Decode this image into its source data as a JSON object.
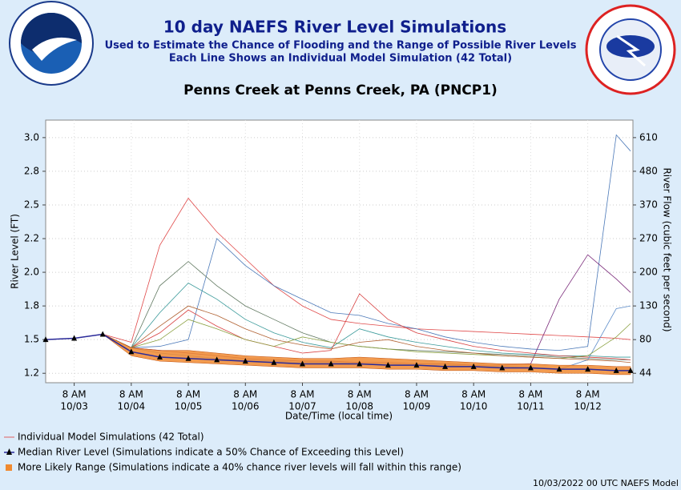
{
  "header": {
    "title": "10 day NAEFS River Level Simulations",
    "subtitle1": "Used to Estimate the Chance of Flooding and the Range of Possible River Levels",
    "subtitle2": "Each Line Shows an Individual Model Simulation (42 Total)"
  },
  "chart_data": {
    "type": "line",
    "title": "Penns Creek at Penns Creek, PA (PNCP1)",
    "x_label": "Date/Time (local time)",
    "y_label": "River Level (FT)",
    "y2_label": "River Flow (cubic feet per second)",
    "x": [
      "10/02 20:00",
      "10/03 08:00",
      "10/03 20:00",
      "10/04 08:00",
      "10/04 20:00",
      "10/05 08:00",
      "10/05 20:00",
      "10/06 08:00",
      "10/06 20:00",
      "10/07 08:00",
      "10/07 20:00",
      "10/08 08:00",
      "10/08 20:00",
      "10/09 08:00",
      "10/09 20:00",
      "10/10 08:00",
      "10/10 20:00",
      "10/11 08:00",
      "10/11 20:00",
      "10/12 08:00",
      "10/12 20:00",
      "10/13 02:00"
    ],
    "xlim": [
      "10/02 20:00",
      "10/13 03:00"
    ],
    "xticks": [
      {
        "value": "10/03 08:00",
        "label": [
          "8 AM",
          "10/03"
        ]
      },
      {
        "value": "10/04 08:00",
        "label": [
          "8 AM",
          "10/04"
        ]
      },
      {
        "value": "10/05 08:00",
        "label": [
          "8 AM",
          "10/05"
        ]
      },
      {
        "value": "10/06 08:00",
        "label": [
          "8 AM",
          "10/06"
        ]
      },
      {
        "value": "10/07 08:00",
        "label": [
          "8 AM",
          "10/07"
        ]
      },
      {
        "value": "10/08 08:00",
        "label": [
          "8 AM",
          "10/08"
        ]
      },
      {
        "value": "10/09 08:00",
        "label": [
          "8 AM",
          "10/09"
        ]
      },
      {
        "value": "10/10 08:00",
        "label": [
          "8 AM",
          "10/10"
        ]
      },
      {
        "value": "10/11 08:00",
        "label": [
          "8 AM",
          "10/11"
        ]
      },
      {
        "value": "10/12 08:00",
        "label": [
          "8 AM",
          "10/12"
        ]
      }
    ],
    "ylim": [
      1.18,
      3.13
    ],
    "yticks": [
      {
        "value": 3.0,
        "label": "3.0"
      },
      {
        "value": 2.75,
        "label": "2.8"
      },
      {
        "value": 2.5,
        "label": "2.5"
      },
      {
        "value": 2.25,
        "label": "2.2"
      },
      {
        "value": 2.0,
        "label": "2.0"
      },
      {
        "value": 1.75,
        "label": "1.8"
      },
      {
        "value": 1.5,
        "label": "1.5"
      },
      {
        "value": 1.25,
        "label": "1.2"
      }
    ],
    "y2ticks": [
      610,
      480,
      370,
      270,
      200,
      130,
      80,
      44
    ],
    "grid": true,
    "simulations": {
      "name": "Individual Model Simulations (42 Total)",
      "color": "#e06060",
      "series": [
        {
          "color": "#e04848",
          "values": [
            1.5,
            1.51,
            1.54,
            1.48,
            2.2,
            2.55,
            2.3,
            2.1,
            1.9,
            1.75,
            1.65,
            1.62,
            1.6,
            1.58,
            1.57,
            1.56,
            1.55,
            1.54,
            1.53,
            1.52,
            1.51,
            1.5
          ]
        },
        {
          "color": "#4a78b8",
          "values": [
            1.5,
            1.51,
            1.54,
            1.44,
            1.45,
            1.5,
            2.25,
            2.05,
            1.9,
            1.8,
            1.7,
            1.68,
            1.62,
            1.58,
            1.52,
            1.48,
            1.45,
            1.43,
            1.42,
            1.45,
            3.02,
            2.9
          ]
        },
        {
          "color": "#7a2a7a",
          "values": [
            1.5,
            1.51,
            1.54,
            1.44,
            1.42,
            1.4,
            1.38,
            1.36,
            1.35,
            1.34,
            1.34,
            1.33,
            1.33,
            1.32,
            1.32,
            1.31,
            1.31,
            1.32,
            1.8,
            2.13,
            1.95,
            1.85
          ]
        },
        {
          "color": "#607860",
          "values": [
            1.5,
            1.51,
            1.54,
            1.44,
            1.9,
            2.08,
            1.9,
            1.75,
            1.65,
            1.55,
            1.48,
            1.45,
            1.43,
            1.42,
            1.41,
            1.4,
            1.39,
            1.38,
            1.37,
            1.36,
            1.35,
            1.35
          ]
        },
        {
          "color": "#3a9a9a",
          "values": [
            1.5,
            1.51,
            1.54,
            1.44,
            1.7,
            1.92,
            1.8,
            1.65,
            1.55,
            1.48,
            1.44,
            1.58,
            1.52,
            1.48,
            1.45,
            1.42,
            1.4,
            1.39,
            1.38,
            1.38,
            1.37,
            1.37
          ]
        },
        {
          "color": "#d84040",
          "values": [
            1.5,
            1.51,
            1.54,
            1.44,
            1.55,
            1.72,
            1.6,
            1.5,
            1.45,
            1.4,
            1.42,
            1.84,
            1.65,
            1.55,
            1.5,
            1.45,
            1.42,
            1.4,
            1.38,
            1.37,
            1.36,
            1.35
          ]
        },
        {
          "color": "#5a8ac8",
          "values": [
            1.5,
            1.51,
            1.54,
            1.44,
            1.4,
            1.38,
            1.36,
            1.35,
            1.34,
            1.33,
            1.33,
            1.32,
            1.32,
            1.31,
            1.31,
            1.3,
            1.3,
            1.29,
            1.28,
            1.35,
            1.73,
            1.75
          ]
        },
        {
          "color": "#8aa040",
          "values": [
            1.5,
            1.51,
            1.54,
            1.44,
            1.5,
            1.65,
            1.58,
            1.5,
            1.45,
            1.52,
            1.48,
            1.45,
            1.43,
            1.41,
            1.4,
            1.39,
            1.38,
            1.37,
            1.36,
            1.38,
            1.52,
            1.62
          ]
        },
        {
          "color": "#b06030",
          "values": [
            1.5,
            1.51,
            1.54,
            1.44,
            1.6,
            1.75,
            1.68,
            1.58,
            1.5,
            1.46,
            1.43,
            1.48,
            1.5,
            1.45,
            1.42,
            1.4,
            1.38,
            1.37,
            1.36,
            1.35,
            1.34,
            1.33
          ]
        }
      ]
    },
    "range": {
      "name": "More Likely Range (Simulations indicate a 40% chance river levels will fall within this range)",
      "color": "#f08a30",
      "upper": [
        1.5,
        1.51,
        1.54,
        1.44,
        1.42,
        1.42,
        1.4,
        1.38,
        1.37,
        1.36,
        1.36,
        1.37,
        1.36,
        1.35,
        1.34,
        1.33,
        1.32,
        1.32,
        1.31,
        1.31,
        1.3,
        1.3
      ],
      "lower": [
        1.5,
        1.51,
        1.54,
        1.38,
        1.34,
        1.33,
        1.32,
        1.31,
        1.3,
        1.29,
        1.29,
        1.29,
        1.28,
        1.28,
        1.27,
        1.27,
        1.26,
        1.26,
        1.25,
        1.25,
        1.24,
        1.24
      ]
    },
    "median": {
      "name": "Median River Level (Simulations indicate a 50% Chance of Exceeding this Level)",
      "color": "#000000",
      "values": [
        1.5,
        1.51,
        1.54,
        1.41,
        1.37,
        1.36,
        1.35,
        1.34,
        1.33,
        1.32,
        1.32,
        1.32,
        1.31,
        1.31,
        1.3,
        1.3,
        1.29,
        1.29,
        1.28,
        1.28,
        1.27,
        1.27
      ]
    }
  },
  "footer": "10/03/2022 00 UTC NAEFS Model"
}
